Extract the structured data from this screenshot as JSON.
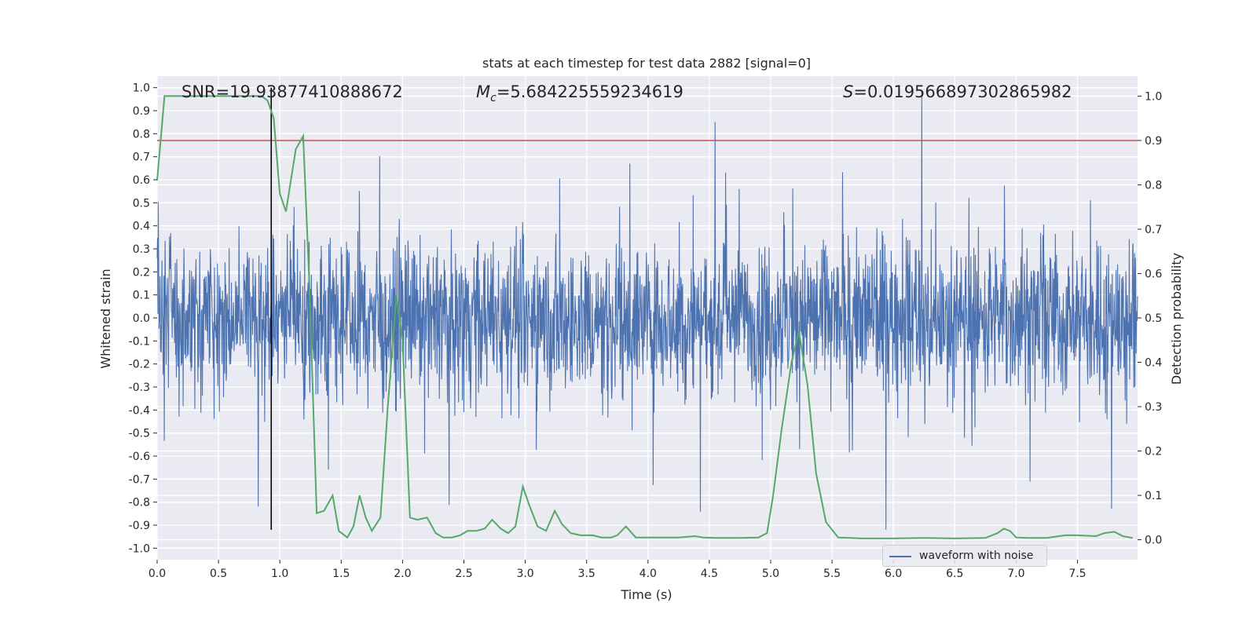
{
  "chart_data": {
    "type": "line",
    "title": "stats at each timestep for test data 2882 [signal=0]",
    "xlabel": "Time (s)",
    "ylabel_left": "Whitened strain",
    "ylabel_right": "Detection probability",
    "xlim": [
      0,
      7.99
    ],
    "ylim_left": [
      -1.05,
      1.05
    ],
    "ylim_right": [
      -0.045,
      1.045
    ],
    "x_ticks": [
      "0.0",
      "0.5",
      "1.0",
      "1.5",
      "2.0",
      "2.5",
      "3.0",
      "3.5",
      "4.0",
      "4.5",
      "5.0",
      "5.5",
      "6.0",
      "6.5",
      "7.0",
      "7.5"
    ],
    "y_ticks_left": [
      "-1.0",
      "-0.9",
      "-0.8",
      "-0.7",
      "-0.6",
      "-0.5",
      "-0.4",
      "-0.3",
      "-0.2",
      "-0.1",
      "0.0",
      "0.1",
      "0.2",
      "0.3",
      "0.4",
      "0.5",
      "0.6",
      "0.7",
      "0.8",
      "0.9",
      "1.0"
    ],
    "y_ticks_right": [
      "0.0",
      "0.1",
      "0.2",
      "0.3",
      "0.4",
      "0.5",
      "0.6",
      "0.7",
      "0.8",
      "0.9",
      "1.0"
    ],
    "annotations": {
      "snr_label": "SNR=19.93877410888672",
      "mc_symbol": "M",
      "mc_subscript": "c",
      "mc_value": "=5.684225559234619",
      "s_symbol": "S",
      "s_value": "=0.019566897302865982"
    },
    "threshold_line": {
      "value": 0.9,
      "axis": "right",
      "color": "#c44e52"
    },
    "vertical_marker": {
      "x": 0.93,
      "y_range": [
        -0.92,
        1.0
      ],
      "color": "#000000"
    },
    "grid": true,
    "legend": {
      "position": "lower-right",
      "entries": [
        "waveform with noise"
      ]
    },
    "series": [
      {
        "name": "waveform with noise",
        "axis": "left",
        "color": "#4c72b0",
        "description_values": {
          "typical_abs": 0.35,
          "peak_max": 1.0,
          "peak_min": -0.92
        }
      },
      {
        "axis": "right",
        "color": "#55a868",
        "x": [
          0.0,
          0.06,
          0.12,
          0.25,
          0.4,
          0.55,
          0.7,
          0.85,
          0.9,
          0.95,
          1.0,
          1.05,
          1.13,
          1.19,
          1.24,
          1.3,
          1.36,
          1.43,
          1.48,
          1.55,
          1.6,
          1.65,
          1.7,
          1.75,
          1.82,
          1.88,
          1.95,
          2.0,
          2.06,
          2.12,
          2.2,
          2.27,
          2.33,
          2.4,
          2.47,
          2.53,
          2.6,
          2.67,
          2.73,
          2.8,
          2.86,
          2.92,
          2.98,
          3.03,
          3.1,
          3.17,
          3.24,
          3.3,
          3.37,
          3.45,
          3.55,
          3.62,
          3.7,
          3.75,
          3.82,
          3.9,
          4.0,
          4.12,
          4.25,
          4.38,
          4.45,
          4.55,
          4.75,
          4.9,
          4.97,
          5.02,
          5.09,
          5.17,
          5.23,
          5.3,
          5.37,
          5.45,
          5.55,
          5.75,
          6.0,
          6.25,
          6.5,
          6.75,
          6.85,
          6.9,
          6.95,
          7.0,
          7.1,
          7.25,
          7.4,
          7.5,
          7.65,
          7.72,
          7.8,
          7.87,
          7.95
        ],
        "y": [
          0.81,
          1.0,
          1.0,
          1.0,
          1.0,
          1.0,
          1.0,
          1.0,
          0.99,
          0.95,
          0.78,
          0.74,
          0.88,
          0.91,
          0.58,
          0.06,
          0.065,
          0.1,
          0.02,
          0.005,
          0.03,
          0.1,
          0.05,
          0.02,
          0.05,
          0.3,
          0.55,
          0.45,
          0.05,
          0.045,
          0.05,
          0.015,
          0.005,
          0.005,
          0.01,
          0.02,
          0.02,
          0.025,
          0.045,
          0.025,
          0.015,
          0.03,
          0.12,
          0.08,
          0.03,
          0.02,
          0.065,
          0.035,
          0.015,
          0.01,
          0.01,
          0.005,
          0.005,
          0.01,
          0.03,
          0.005,
          0.005,
          0.005,
          0.005,
          0.008,
          0.005,
          0.004,
          0.004,
          0.005,
          0.015,
          0.1,
          0.25,
          0.4,
          0.47,
          0.35,
          0.15,
          0.04,
          0.005,
          0.003,
          0.003,
          0.004,
          0.003,
          0.004,
          0.015,
          0.025,
          0.02,
          0.005,
          0.004,
          0.004,
          0.01,
          0.01,
          0.008,
          0.015,
          0.018,
          0.008,
          0.004
        ]
      }
    ]
  }
}
